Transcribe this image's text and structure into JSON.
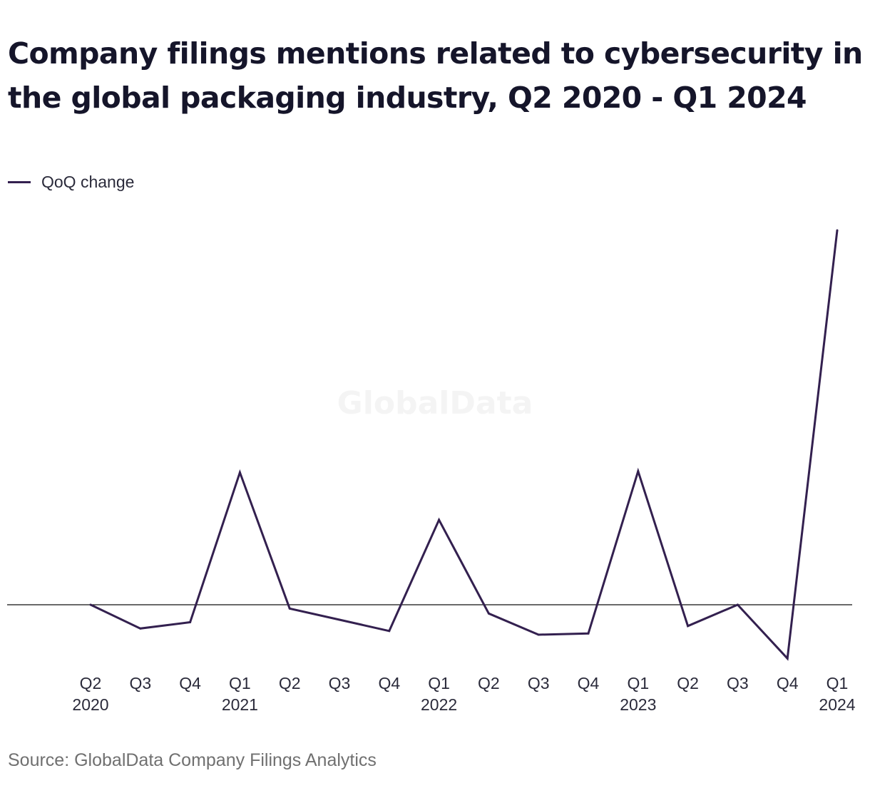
{
  "title": "Company filings mentions related to cybersecurity in the global packaging industry, Q2 2020 - Q1 2024",
  "legend": {
    "label": "QoQ change",
    "color": "#33204f"
  },
  "watermark": "GlobalData",
  "source": "Source: GlobalData Company Filings Analytics",
  "chart_data": {
    "type": "line",
    "title": "Company filings mentions related to cybersecurity in the global packaging industry, Q2 2020 - Q1 2024",
    "xlabel": "",
    "ylabel": "",
    "grid": false,
    "legend_position": "top-left",
    "zero_line": true,
    "x_labels": [
      [
        "Q2",
        "2020"
      ],
      [
        "Q3",
        ""
      ],
      [
        "Q4",
        ""
      ],
      [
        "Q1",
        "2021"
      ],
      [
        "Q2",
        ""
      ],
      [
        "Q3",
        ""
      ],
      [
        "Q4",
        ""
      ],
      [
        "Q1",
        "2022"
      ],
      [
        "Q2",
        ""
      ],
      [
        "Q3",
        ""
      ],
      [
        "Q4",
        ""
      ],
      [
        "Q1",
        "2023"
      ],
      [
        "Q2",
        ""
      ],
      [
        "Q3",
        ""
      ],
      [
        "Q4",
        ""
      ],
      [
        "Q1",
        "2024"
      ]
    ],
    "ylim": [
      -45,
      310
    ],
    "series": [
      {
        "name": "QoQ change",
        "color": "#33204f",
        "values": [
          0,
          -19,
          -14,
          106,
          -3,
          -12,
          -21,
          68,
          -7,
          -24,
          -23,
          107,
          -17,
          0,
          -43,
          300
        ]
      }
    ]
  }
}
